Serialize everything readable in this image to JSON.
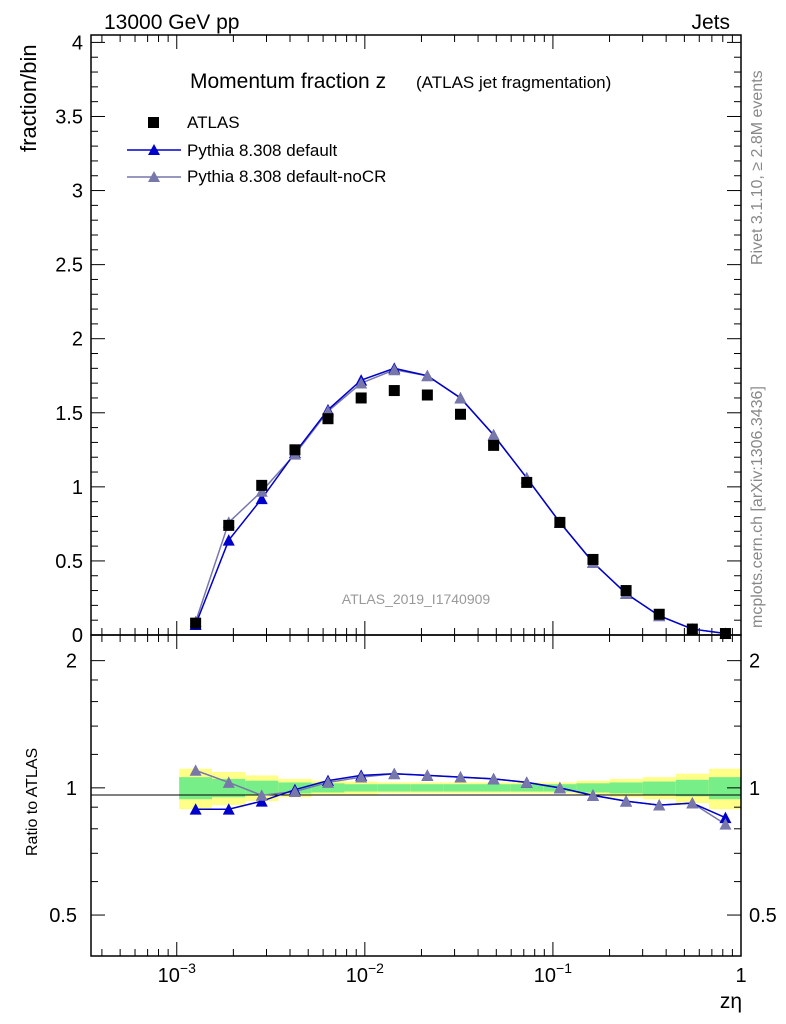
{
  "header": {
    "left": "13000 GeV pp",
    "right": "Jets"
  },
  "side_labels": {
    "top": "Rivet 3.1.10, ≥ 2.8M events",
    "bottom": "mcplots.cern.ch [arXiv:1306.3436]"
  },
  "chart_data": {
    "type": "scatter",
    "title_main": "Momentum fraction z",
    "title_sub": "(ATLAS jet fragmentation)",
    "watermark": "ATLAS_2019_I1740909",
    "xlabel": "zη",
    "x_scale": "log",
    "xlim": [
      0.00035,
      1
    ],
    "x_ticks": [
      {
        "value": 0.001,
        "base": "10",
        "exp": "−3"
      },
      {
        "value": 0.01,
        "base": "10",
        "exp": "−2"
      },
      {
        "value": 0.1,
        "base": "10",
        "exp": "−1"
      },
      {
        "value": 1,
        "base": "1",
        "exp": ""
      }
    ],
    "top_panel": {
      "ylabel": "fraction/bin",
      "ylim": [
        0,
        4.05
      ],
      "y_ticks": [
        "0",
        "0.5",
        "1",
        "1.5",
        "2",
        "2.5",
        "3",
        "3.5",
        "4"
      ],
      "y_tick_values": [
        0,
        0.5,
        1,
        1.5,
        2,
        2.5,
        3,
        3.5,
        4
      ]
    },
    "bottom_panel": {
      "ylabel": "Ratio to ATLAS",
      "y_scale": "log",
      "ylim": [
        0.4,
        2.3
      ],
      "y_ticks": [
        "0.5",
        "1",
        "2"
      ],
      "y_tick_values": [
        0.5,
        1,
        2
      ]
    },
    "x": [
      0.00126,
      0.00189,
      0.00283,
      0.00425,
      0.00637,
      0.00956,
      0.01434,
      0.0215,
      0.03225,
      0.04838,
      0.07257,
      0.1089,
      0.1633,
      0.2449,
      0.3674,
      0.5511,
      0.8266
    ],
    "bin_edges": [
      0.00103,
      0.00154,
      0.00231,
      0.00347,
      0.0052,
      0.0078,
      0.0117,
      0.01755,
      0.02633,
      0.03949,
      0.05924,
      0.08886,
      0.1333,
      0.2,
      0.3,
      0.45,
      0.675,
      1.0
    ],
    "series": [
      {
        "name": "ATLAS",
        "color": "#000000",
        "marker": "square",
        "values": [
          0.08,
          0.74,
          1.01,
          1.25,
          1.46,
          1.6,
          1.65,
          1.62,
          1.49,
          1.28,
          1.03,
          0.76,
          0.51,
          0.3,
          0.14,
          0.04,
          0.01
        ],
        "ratio_band_inner": [
          0.06,
          0.05,
          0.04,
          0.03,
          0.025,
          0.02,
          0.02,
          0.02,
          0.02,
          0.02,
          0.02,
          0.02,
          0.025,
          0.03,
          0.035,
          0.045,
          0.06
        ],
        "ratio_band_outer": [
          0.11,
          0.09,
          0.07,
          0.05,
          0.04,
          0.035,
          0.03,
          0.03,
          0.03,
          0.03,
          0.03,
          0.03,
          0.04,
          0.05,
          0.06,
          0.08,
          0.11
        ]
      },
      {
        "name": "Pythia 8.308 default",
        "color": "#0000cc",
        "marker": "triangle",
        "values": [
          0.07,
          0.64,
          0.92,
          1.23,
          1.52,
          1.72,
          1.8,
          1.75,
          1.6,
          1.35,
          1.06,
          0.76,
          0.49,
          0.28,
          0.13,
          0.04,
          0.01
        ],
        "ratio": [
          0.89,
          0.89,
          0.93,
          0.99,
          1.04,
          1.07,
          1.08,
          1.07,
          1.06,
          1.05,
          1.03,
          1.0,
          0.96,
          0.93,
          0.91,
          0.92,
          0.85
        ]
      },
      {
        "name": "Pythia 8.308 default-noCR",
        "color": "#7777aa",
        "marker": "triangle",
        "values": [
          0.09,
          0.76,
          0.97,
          1.22,
          1.51,
          1.7,
          1.79,
          1.75,
          1.6,
          1.35,
          1.06,
          0.76,
          0.49,
          0.28,
          0.13,
          0.04,
          0.01
        ],
        "ratio": [
          1.1,
          1.03,
          0.96,
          0.98,
          1.03,
          1.06,
          1.08,
          1.07,
          1.06,
          1.05,
          1.03,
          1.0,
          0.96,
          0.93,
          0.91,
          0.92,
          0.82
        ]
      }
    ],
    "legend_position": "top-left"
  }
}
